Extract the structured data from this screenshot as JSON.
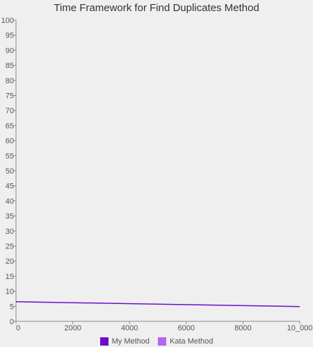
{
  "chart_data": {
    "type": "line",
    "title": "Time Framework for Find Duplicates Method",
    "xlabel": "",
    "ylabel": "",
    "x_ticks": [
      "0",
      "2000",
      "4000",
      "6000",
      "8000",
      "10_000"
    ],
    "x_tick_values": [
      0,
      2000,
      4000,
      6000,
      8000,
      10000
    ],
    "xlim": [
      0,
      10000
    ],
    "ylim": [
      0,
      100
    ],
    "y_ticks": [
      0,
      5,
      10,
      15,
      20,
      25,
      30,
      35,
      40,
      45,
      50,
      55,
      60,
      65,
      70,
      75,
      80,
      85,
      90,
      95,
      100
    ],
    "grid": false,
    "legend_position": "bottom",
    "series": [
      {
        "name": "My Method",
        "color": "#6a0dc8",
        "x": [
          0,
          10000
        ],
        "y": [
          6.5,
          4.9
        ]
      },
      {
        "name": "Kata Method",
        "color": "#b366f0",
        "x": [],
        "y": []
      }
    ]
  }
}
